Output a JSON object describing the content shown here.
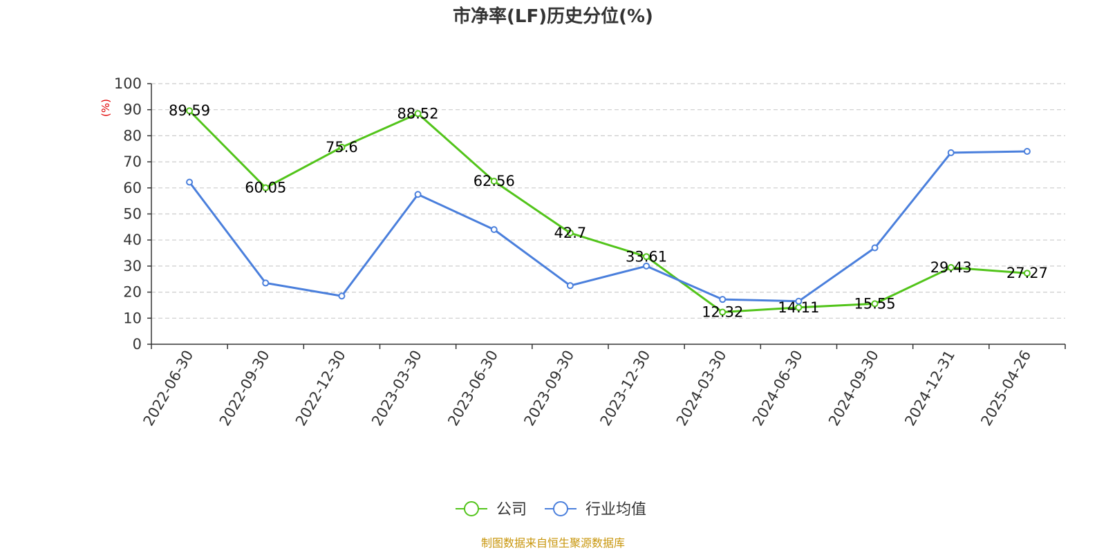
{
  "chart_data": {
    "type": "line",
    "title": "市净率(LF)历史分位(%)",
    "ylabel": "(%)",
    "xlabel": "",
    "ylim": [
      0,
      100
    ],
    "yticks": [
      0,
      10,
      20,
      30,
      40,
      50,
      60,
      70,
      80,
      90,
      100
    ],
    "grid": true,
    "legend_position": "bottom",
    "categories": [
      "2022-06-30",
      "2022-09-30",
      "2022-12-30",
      "2023-03-30",
      "2023-06-30",
      "2023-09-30",
      "2023-12-30",
      "2024-03-30",
      "2024-06-30",
      "2024-09-30",
      "2024-12-31",
      "2025-04-26"
    ],
    "series": [
      {
        "name": "公司",
        "color": "#52c41a",
        "values": [
          89.59,
          60.05,
          75.6,
          88.52,
          62.56,
          42.7,
          33.61,
          12.32,
          14.11,
          15.55,
          29.43,
          27.27
        ],
        "labels": [
          "89.59",
          "60.05",
          "75.6",
          "88.52",
          "62.56",
          "42.7",
          "33.61",
          "12.32",
          "14.11",
          "15.55",
          "29.43",
          "27.27"
        ]
      },
      {
        "name": "行业均值",
        "color": "#4a7fdc",
        "values": [
          62.2,
          23.5,
          18.5,
          57.5,
          44.0,
          22.5,
          30.0,
          17.2,
          16.5,
          37.0,
          73.5,
          74.0
        ]
      }
    ]
  },
  "colors": {
    "y_unit": "#e00000",
    "source": "#c8960c",
    "text": "#333333"
  },
  "source_note": "制图数据来自恒生聚源数据库"
}
